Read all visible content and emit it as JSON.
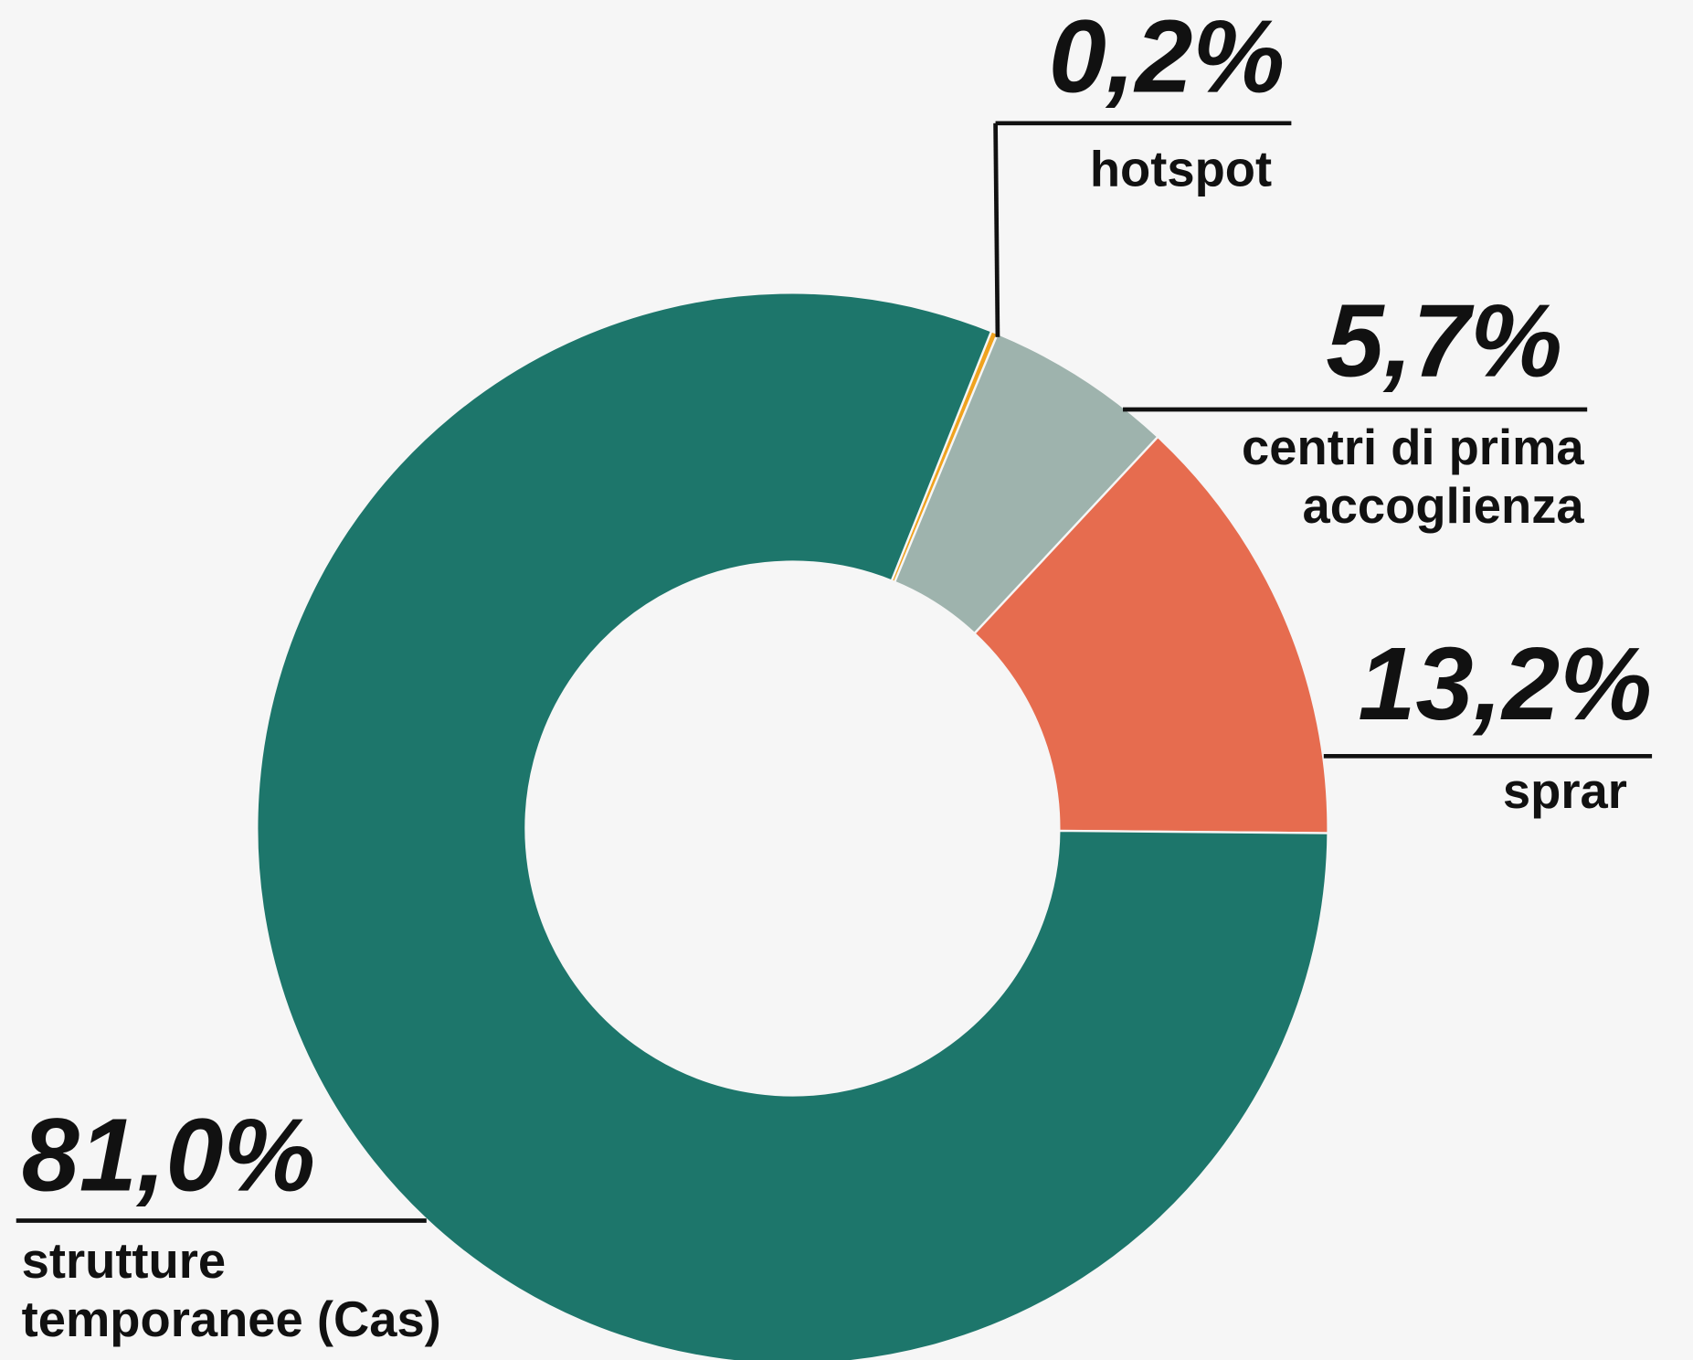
{
  "chart_data": {
    "type": "donut",
    "categories": [
      [
        "hotspot"
      ],
      [
        "centri di prima",
        "accoglienza"
      ],
      [
        "sprar"
      ],
      [
        "strutture",
        "temporanee (Cas)"
      ]
    ],
    "values": [
      0.2,
      5.7,
      13.2,
      81.0
    ],
    "value_labels": [
      "0,2%",
      "5,7%",
      "13,2%",
      "81,0%"
    ],
    "colors": [
      "#f0a31f",
      "#9eb3ad",
      "#e66c4f",
      "#1d766b"
    ]
  }
}
